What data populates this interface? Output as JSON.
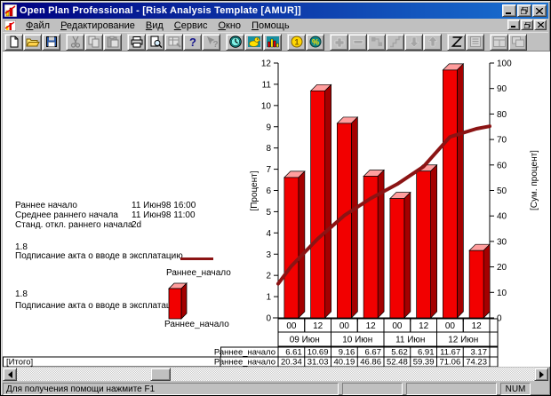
{
  "window": {
    "title": "Open Plan Professional - [Risk Analysis Template [AMUR]]"
  },
  "menu": {
    "items": [
      "Файл",
      "Редактирование",
      "Вид",
      "Сервис",
      "Окно",
      "Помощь"
    ]
  },
  "toolbar": {
    "groups": [
      [
        {
          "icon": "new-document-icon",
          "enabled": true
        },
        {
          "icon": "open-folder-icon",
          "enabled": true
        },
        {
          "icon": "save-icon",
          "enabled": true
        }
      ],
      [
        {
          "icon": "cut-scissors-icon",
          "enabled": false
        },
        {
          "icon": "copy-icon",
          "enabled": false
        },
        {
          "icon": "paste-clipboard-icon",
          "enabled": false
        }
      ],
      [
        {
          "icon": "print-icon",
          "enabled": true
        },
        {
          "icon": "print-preview-icon",
          "enabled": true
        },
        {
          "icon": "table-chart-icon",
          "enabled": false
        },
        {
          "icon": "help-icon",
          "enabled": true
        },
        {
          "icon": "context-help-icon",
          "enabled": false
        }
      ],
      [
        {
          "icon": "clock-icon",
          "enabled": true
        },
        {
          "icon": "duck-icon",
          "enabled": true
        },
        {
          "icon": "histogram-icon",
          "enabled": true
        }
      ],
      [
        {
          "icon": "coin-icon",
          "enabled": true
        },
        {
          "icon": "percent-coin-icon",
          "enabled": true
        }
      ],
      [
        {
          "icon": "plus-icon",
          "enabled": false
        },
        {
          "icon": "minus-icon",
          "enabled": false
        },
        {
          "icon": "link-nodes-icon",
          "enabled": false
        },
        {
          "icon": "steps-icon",
          "enabled": false
        },
        {
          "icon": "arrow-down-icon",
          "enabled": false
        },
        {
          "icon": "arrow-up-icon",
          "enabled": false
        }
      ],
      [
        {
          "icon": "zigzag-icon",
          "enabled": true
        },
        {
          "icon": "lined-page-icon",
          "enabled": false
        }
      ],
      [
        {
          "icon": "split-window-icon",
          "enabled": false
        },
        {
          "icon": "cascade-window-icon",
          "enabled": false
        }
      ]
    ]
  },
  "info_panel": {
    "rows": [
      {
        "label": "Раннее начало",
        "value": "11 Июн98 16:00"
      },
      {
        "label": "Среднее раннего начала",
        "value": "11 Июн98 11:00"
      },
      {
        "label": "Станд. откл.  раннего начала",
        "value": "2d"
      }
    ]
  },
  "legend_line": {
    "value": "1.8",
    "caption": "Подписание акта о вводе в эксплатацию",
    "series": "Раннее_начало"
  },
  "legend_bar": {
    "value": "1.8",
    "caption": "Подписание акта о вводе в эксплатацию",
    "series": "Раннее_начало"
  },
  "chart_data": {
    "type": "bar",
    "categories": [
      "00",
      "12",
      "00",
      "12",
      "00",
      "12",
      "00",
      "12"
    ],
    "category_groups": [
      {
        "label": "09 Июн",
        "span": 2
      },
      {
        "label": "10 Июн",
        "span": 2
      },
      {
        "label": "11 Июн",
        "span": 2
      },
      {
        "label": "12 Июн",
        "span": 2
      }
    ],
    "series": [
      {
        "name": "Раннее_начало",
        "type": "bar",
        "axis": "left",
        "values": [
          6.61,
          10.69,
          9.16,
          6.67,
          5.62,
          6.91,
          11.67,
          3.17
        ],
        "color": "#f20000"
      },
      {
        "name": "Раннее_начало",
        "type": "line",
        "axis": "right",
        "values": [
          20.34,
          31.03,
          40.19,
          46.86,
          52.48,
          59.39,
          71.06,
          74.23
        ],
        "color": "#8b1414"
      }
    ],
    "ylabel_left": "[Процент]",
    "ylabel_right": "[Сум. процент]",
    "ylim_left": [
      0,
      12
    ],
    "ytick_left": 1,
    "ylim_right": [
      0,
      100
    ],
    "ytick_right": 10,
    "bar_top_color": "#ff9d9d",
    "bar_side_color": "#a40000",
    "grid": false,
    "legend_position": "left"
  },
  "table": {
    "rows": [
      {
        "row_header": "",
        "series": "Раннее_начало",
        "values": [
          "6.61",
          "10.69",
          "9.16",
          "6.67",
          "5.62",
          "6.91",
          "11.67",
          "3.17"
        ]
      },
      {
        "row_header": "[Итого]",
        "series": "Раннее_начало",
        "values": [
          "20.34",
          "31.03",
          "40.19",
          "46.86",
          "52.48",
          "59.39",
          "71.06",
          "74.23"
        ]
      }
    ]
  },
  "status_bar": {
    "message": "Для получения помощи нажмите F1",
    "num_indicator": "NUM"
  }
}
